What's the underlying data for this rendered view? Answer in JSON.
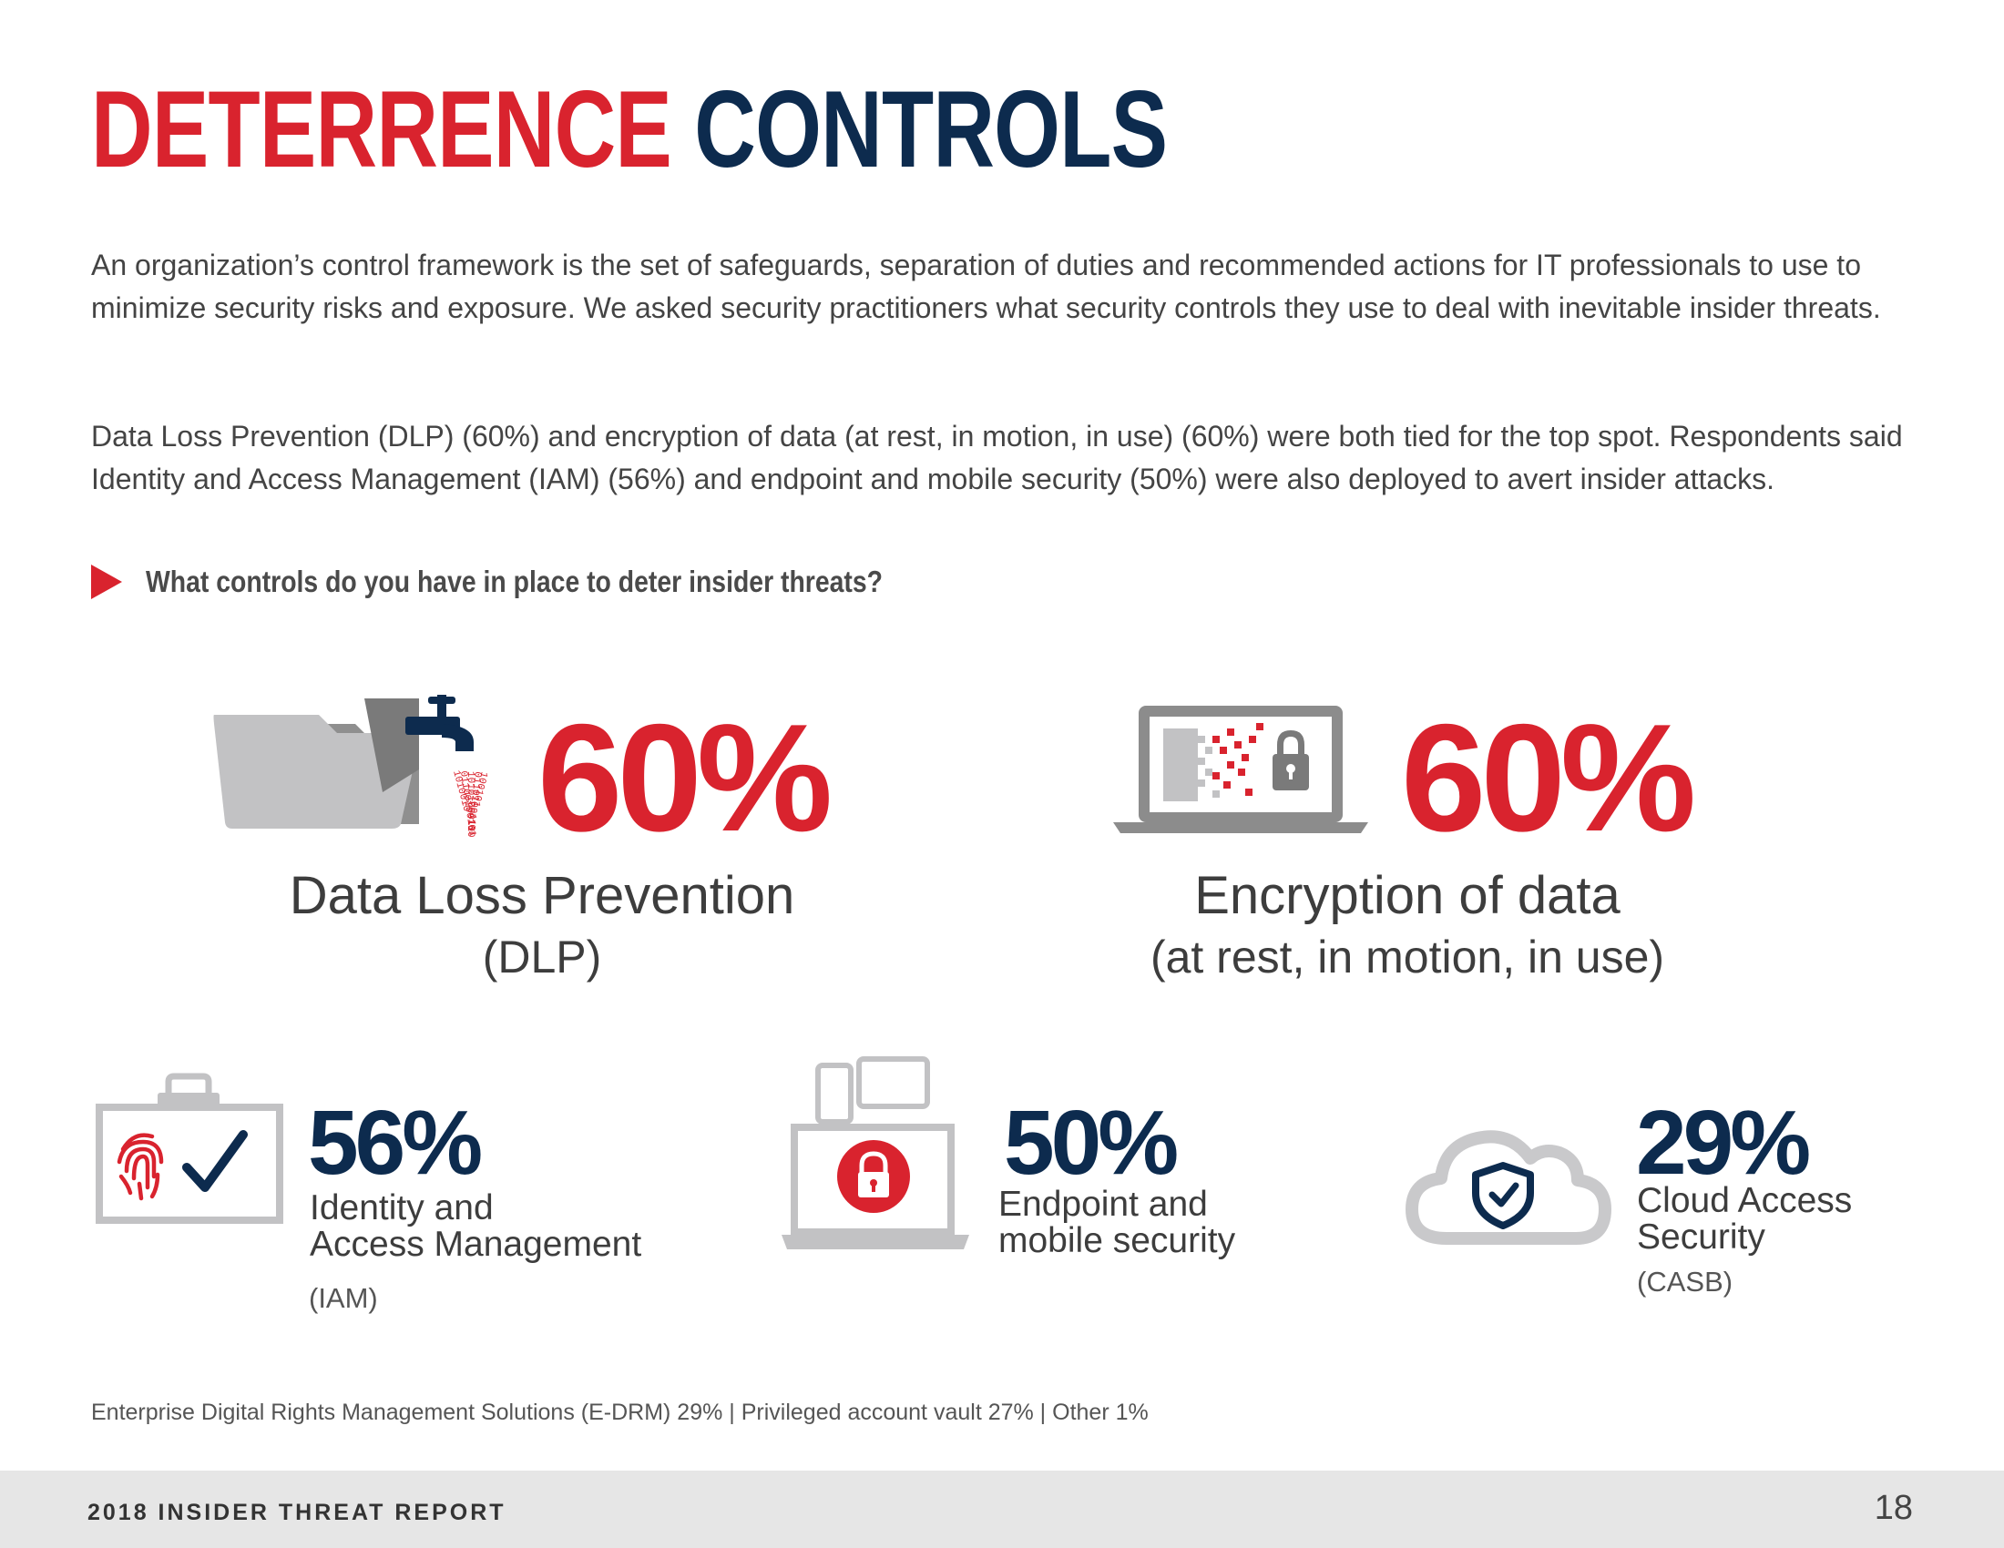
{
  "title": {
    "part1": "DETERRENCE",
    "part2": "CONTROLS"
  },
  "intro": {
    "p1": "An organization’s control framework is the set of safeguards, separation of duties and recommended actions for IT professionals to use to minimize security risks and exposure. We asked security practitioners what security controls they use to deal with inevitable insider threats.",
    "p2": "Data Loss Prevention (DLP) (60%) and encryption of data (at rest, in motion, in use) (60%) were both tied for the top spot. Respondents said Identity and Access Management (IAM) (56%) and endpoint and mobile security (50%) were also deployed to avert insider attacks."
  },
  "question": "What controls do you have in place to deter insider threats?",
  "stats": {
    "dlp": {
      "pct": "60%",
      "label": "Data Loss Prevention",
      "sub": "(DLP)",
      "icon": "folder-faucet-icon"
    },
    "encryption": {
      "pct": "60%",
      "label": "Encryption of data",
      "sub": "(at rest, in motion, in use)",
      "icon": "laptop-lock-icon"
    },
    "iam": {
      "pct": "56%",
      "label": "Identity and\nAccess Management",
      "sub": "(IAM)",
      "icon": "clipboard-fingerprint-icon"
    },
    "endpoint": {
      "pct": "50%",
      "label": "Endpoint and\nmobile security",
      "icon": "devices-lock-icon"
    },
    "casb": {
      "pct": "29%",
      "label": "Cloud Access\nSecurity",
      "sub": "(CASB)",
      "icon": "cloud-shield-icon"
    }
  },
  "others": "Enterprise Digital Rights Management Solutions (E-DRM) 29%  |  Privileged account vault 27%  |  Other 1%",
  "footer": {
    "report": "2018 INSIDER THREAT REPORT",
    "page": "18"
  },
  "colors": {
    "red": "#d9232e",
    "navy": "#0d2b4e",
    "gray": "#b5b5b5"
  }
}
